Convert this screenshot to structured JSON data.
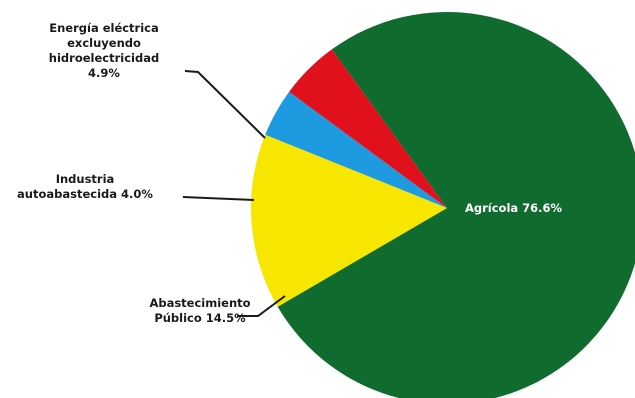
{
  "chart_data": {
    "type": "pie",
    "slices": [
      {
        "label": "Agrícola",
        "value": 76.6,
        "value_text": "76.6%",
        "color": "#0f6b2e",
        "label_lines": [
          "Agrícola 76.6%"
        ]
      },
      {
        "label": "Abastecimiento Público",
        "value": 14.5,
        "value_text": "14.5%",
        "color": "#f7e600",
        "label_lines": [
          "Abastecimiento",
          "Público 14.5%"
        ]
      },
      {
        "label": "Industria autoabastecida",
        "value": 4.0,
        "value_text": "4.0%",
        "color": "#1e9be0",
        "label_lines": [
          "Industria",
          "autoabastecida 4.0%"
        ]
      },
      {
        "label": "Energía eléctrica excluyendo hidroelectricidad",
        "value": 4.9,
        "value_text": "4.9%",
        "color": "#e0101c",
        "label_lines": [
          "Energía eléctrica",
          "excluyendo",
          "hidroelectricidad",
          "4.9%"
        ]
      }
    ]
  }
}
